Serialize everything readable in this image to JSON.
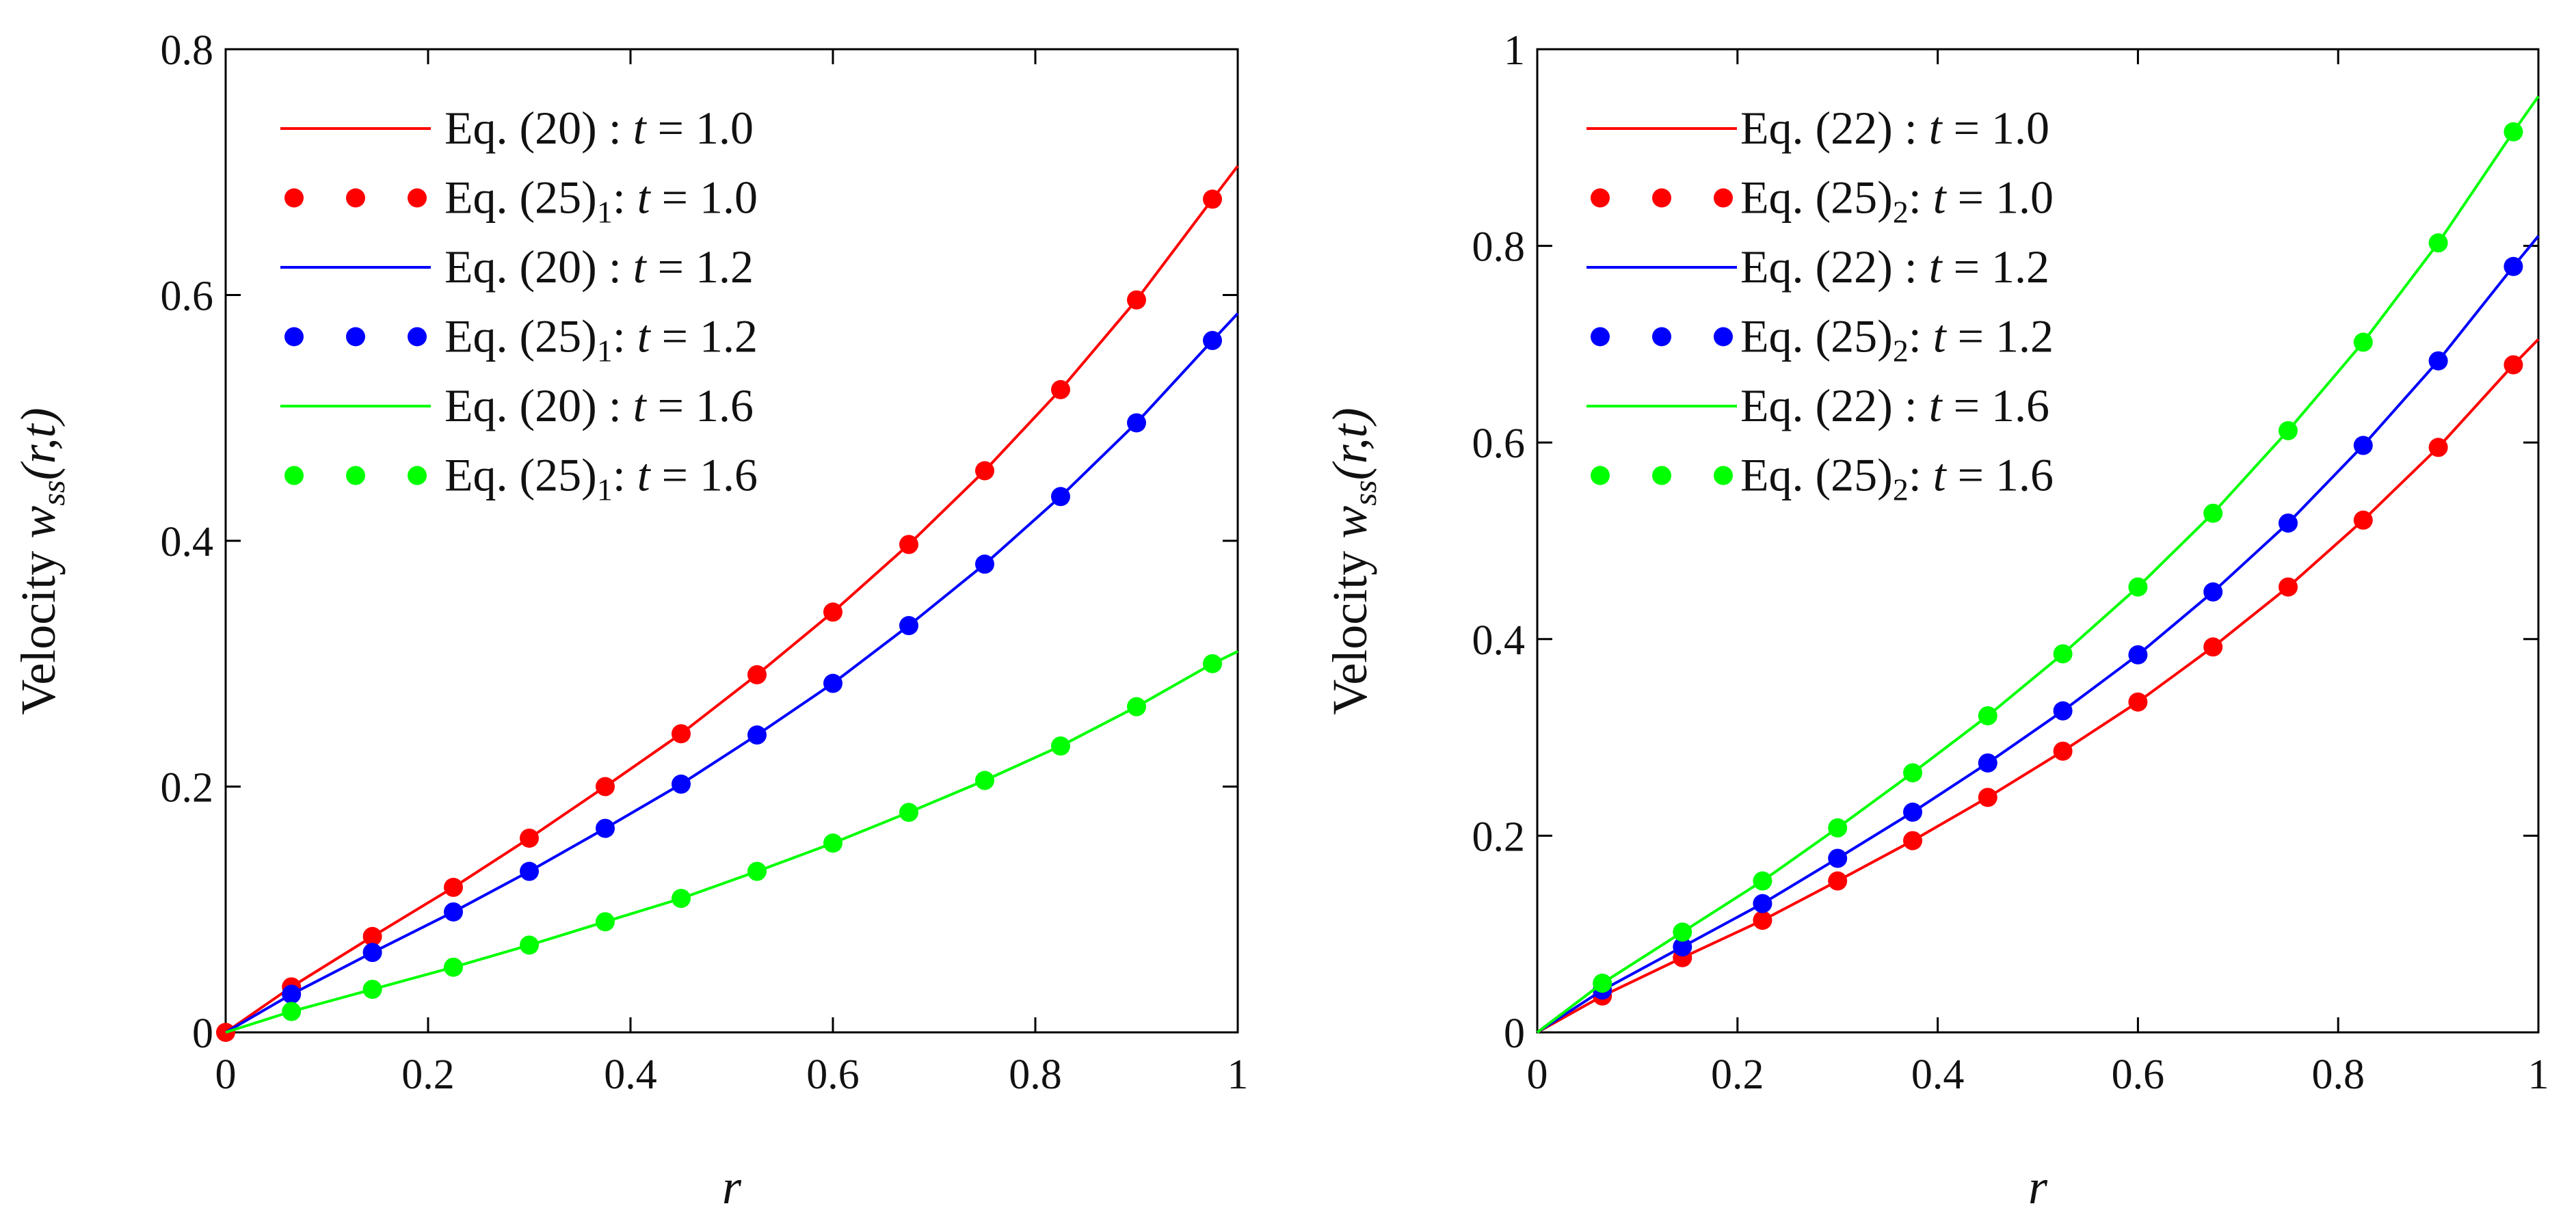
{
  "chart_data": [
    {
      "type": "line",
      "xlabel": "r",
      "ylabel": "Velocity",
      "ylabel_symbol": "w",
      "ylabel_sub": "ss",
      "ylabel_args": "(r,t)",
      "xlim": [
        0,
        1
      ],
      "ylim": [
        0,
        0.8
      ],
      "xticks": [
        0,
        0.2,
        0.4,
        0.6,
        0.8,
        1
      ],
      "xtick_labels": [
        "0",
        "0.2",
        "0.4",
        "0.6",
        "0.8",
        "1"
      ],
      "yticks": [
        0,
        0.2,
        0.4,
        0.6,
        0.8
      ],
      "ytick_labels": [
        "0",
        "0.2",
        "0.4",
        "0.6",
        "0.8"
      ],
      "legend_position": "top-left",
      "grid": false,
      "x": [
        0,
        0.065,
        0.145,
        0.225,
        0.3,
        0.375,
        0.45,
        0.525,
        0.6,
        0.675,
        0.75,
        0.825,
        0.9,
        0.975
      ],
      "series": [
        {
          "name": "Eq. (20) : t = 1.0",
          "style": "line",
          "color": "#ff0000",
          "label_main": "Eq. (20) : ",
          "label_var": "t",
          "label_val": " = 1.0",
          "values": [
            0,
            0.037,
            0.078,
            0.118,
            0.158,
            0.2,
            0.243,
            0.291,
            0.342,
            0.397,
            0.457,
            0.523,
            0.596,
            0.678
          ],
          "end_value": 0.705
        },
        {
          "name": "Eq. (25)1: t = 1.0",
          "style": "dots",
          "color": "#ff0000",
          "label_main": "Eq. (25)",
          "label_sub": "1",
          "label_colon": ": ",
          "label_var": "t",
          "label_val": " = 1.0",
          "values": [
            0,
            0.037,
            0.078,
            0.118,
            0.158,
            0.2,
            0.243,
            0.291,
            0.342,
            0.397,
            0.457,
            0.523,
            0.596,
            0.678
          ]
        },
        {
          "name": "Eq. (20) : t = 1.2",
          "style": "line",
          "color": "#0000ff",
          "label_main": "Eq. (20) : ",
          "label_var": "t",
          "label_val": " = 1.2",
          "values": [
            0,
            0.031,
            0.065,
            0.098,
            0.131,
            0.166,
            0.202,
            0.242,
            0.284,
            0.331,
            0.381,
            0.436,
            0.496,
            0.563
          ],
          "end_value": 0.585
        },
        {
          "name": "Eq. (25)1: t = 1.2",
          "style": "dots",
          "color": "#0000ff",
          "label_main": "Eq. (25)",
          "label_sub": "1",
          "label_colon": ": ",
          "label_var": "t",
          "label_val": " = 1.2",
          "values": [
            null,
            0.031,
            0.065,
            0.098,
            0.131,
            0.166,
            0.202,
            0.242,
            0.284,
            0.331,
            0.381,
            0.436,
            0.496,
            0.563
          ]
        },
        {
          "name": "Eq. (20) : t = 1.6",
          "style": "line",
          "color": "#00ff00",
          "label_main": "Eq. (20) : ",
          "label_var": "t",
          "label_val": " = 1.6",
          "values": [
            0,
            0.017,
            0.035,
            0.053,
            0.071,
            0.09,
            0.109,
            0.131,
            0.154,
            0.179,
            0.205,
            0.233,
            0.265,
            0.3
          ],
          "end_value": 0.31
        },
        {
          "name": "Eq. (25)1: t = 1.6",
          "style": "dots",
          "color": "#00ff00",
          "label_main": "Eq. (25)",
          "label_sub": "1",
          "label_colon": ": ",
          "label_var": "t",
          "label_val": " = 1.6",
          "values": [
            null,
            0.017,
            0.035,
            0.053,
            0.071,
            0.09,
            0.109,
            0.131,
            0.154,
            0.179,
            0.205,
            0.233,
            0.265,
            0.3
          ]
        }
      ]
    },
    {
      "type": "line",
      "xlabel": "r",
      "ylabel": "Velocity",
      "ylabel_symbol": "w",
      "ylabel_sub": "ss",
      "ylabel_args": "(r,t)",
      "xlim": [
        0,
        1
      ],
      "ylim": [
        0,
        1
      ],
      "xticks": [
        0,
        0.2,
        0.4,
        0.6,
        0.8,
        1
      ],
      "xtick_labels": [
        "0",
        "0.2",
        "0.4",
        "0.6",
        "0.8",
        "1"
      ],
      "yticks": [
        0,
        0.2,
        0.4,
        0.6,
        0.8,
        1
      ],
      "ytick_labels": [
        "0",
        "0.2",
        "0.4",
        "0.6",
        "0.8",
        "1"
      ],
      "legend_position": "top-left",
      "grid": false,
      "x": [
        0,
        0.065,
        0.145,
        0.225,
        0.3,
        0.375,
        0.45,
        0.525,
        0.6,
        0.675,
        0.75,
        0.825,
        0.9,
        0.975
      ],
      "series": [
        {
          "name": "Eq. (22) : t = 1.0",
          "style": "line",
          "color": "#ff0000",
          "label_main": "Eq. (22) :  ",
          "label_var": "t",
          "label_val": " = 1.0",
          "values": [
            0,
            0.037,
            0.076,
            0.114,
            0.154,
            0.195,
            0.239,
            0.286,
            0.336,
            0.392,
            0.453,
            0.521,
            0.595,
            0.679
          ],
          "end_value": 0.705
        },
        {
          "name": "Eq. (25)2: t = 1.0",
          "style": "dots",
          "color": "#ff0000",
          "label_main": "Eq. (25)",
          "label_sub": "2",
          "label_colon": ": ",
          "label_var": "t",
          "label_val": " = 1.0",
          "values": [
            null,
            0.037,
            0.076,
            0.114,
            0.154,
            0.195,
            0.239,
            0.286,
            0.336,
            0.392,
            0.453,
            0.521,
            0.595,
            0.679
          ]
        },
        {
          "name": "Eq. (22) : t = 1.2",
          "style": "line",
          "color": "#0000ff",
          "label_main": "Eq. (22) :  ",
          "label_var": "t",
          "label_val": " = 1.2",
          "values": [
            0,
            0.043,
            0.087,
            0.131,
            0.177,
            0.224,
            0.274,
            0.327,
            0.384,
            0.448,
            0.518,
            0.597,
            0.683,
            0.779
          ],
          "end_value": 0.81
        },
        {
          "name": "Eq. (25)2: t = 1.2",
          "style": "dots",
          "color": "#0000ff",
          "label_main": "Eq. (25)",
          "label_sub": "2",
          "label_colon": ": ",
          "label_var": "t",
          "label_val": " = 1.2",
          "values": [
            null,
            0.043,
            0.087,
            0.131,
            0.177,
            0.224,
            0.274,
            0.327,
            0.384,
            0.448,
            0.518,
            0.597,
            0.683,
            0.779
          ]
        },
        {
          "name": "Eq. (22) : t = 1.6",
          "style": "line",
          "color": "#00ff00",
          "label_main": "Eq. (22) :  ",
          "label_var": "t",
          "label_val": " = 1.6",
          "values": [
            0,
            0.05,
            0.102,
            0.154,
            0.208,
            0.264,
            0.322,
            0.385,
            0.453,
            0.528,
            0.612,
            0.702,
            0.803,
            0.916
          ],
          "end_value": 0.952
        },
        {
          "name": "Eq. (25)2: t = 1.6",
          "style": "dots",
          "color": "#00ff00",
          "label_main": "Eq. (25)",
          "label_sub": "2",
          "label_colon": ": ",
          "label_var": "t",
          "label_val": " = 1.6",
          "values": [
            null,
            0.05,
            0.102,
            0.154,
            0.208,
            0.264,
            0.322,
            0.385,
            0.453,
            0.528,
            0.612,
            0.702,
            0.803,
            0.916
          ]
        }
      ]
    }
  ]
}
